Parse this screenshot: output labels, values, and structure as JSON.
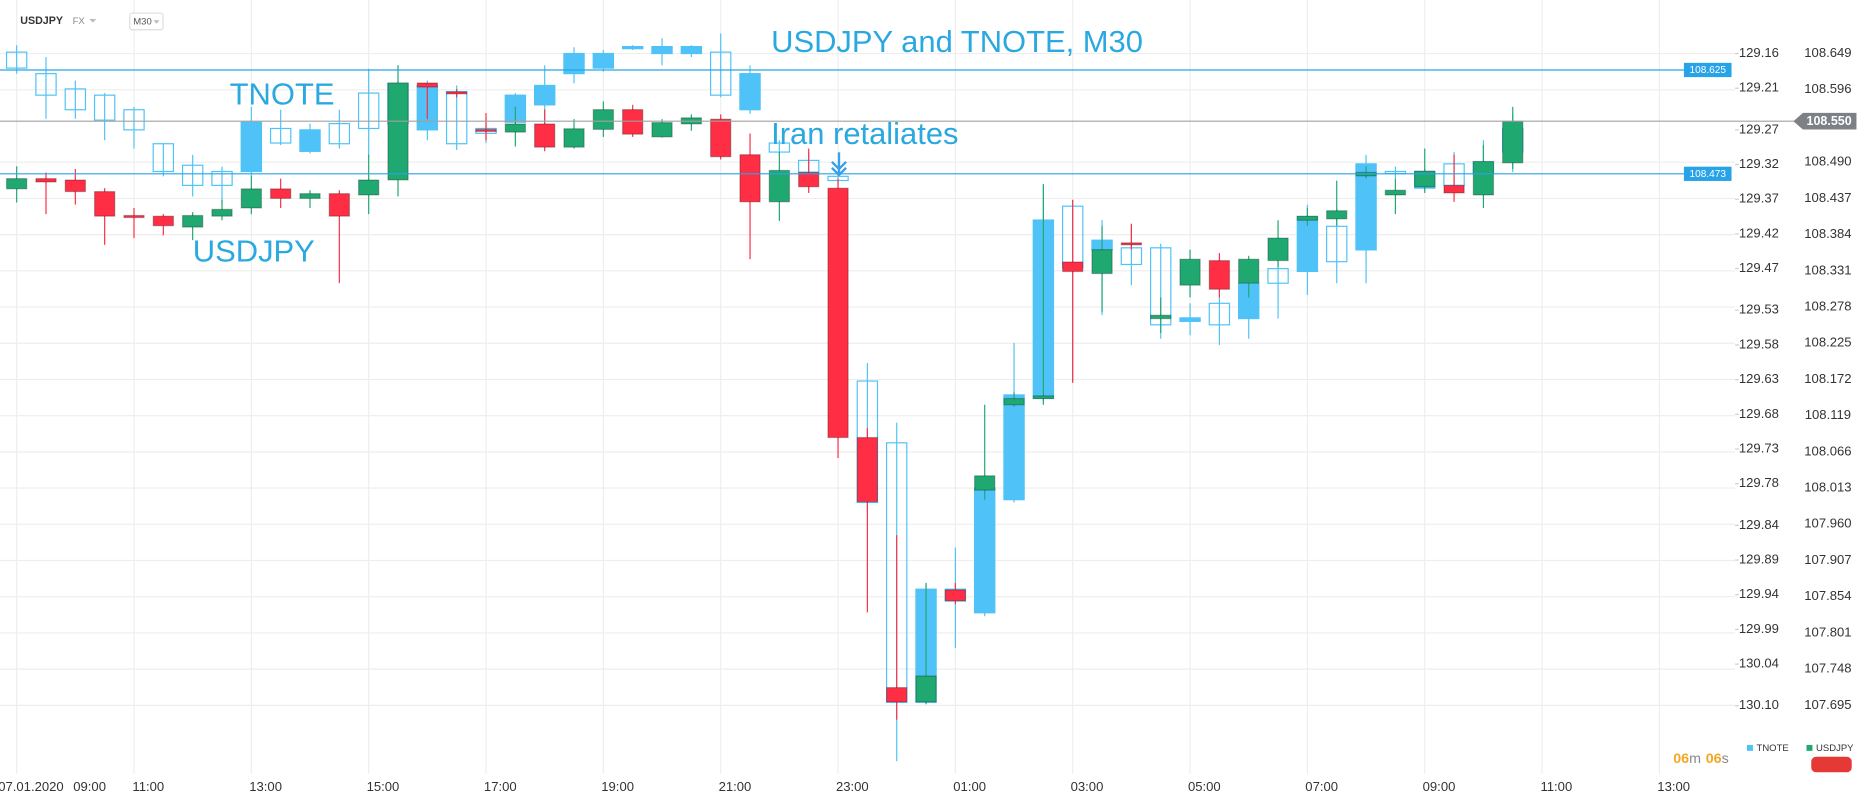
{
  "chart_data": {
    "type": "candlestick",
    "header": {
      "symbol": "USDJPY",
      "market": "FX",
      "timeframe": "M30"
    },
    "title": "USDJPY and TNOTE, M30",
    "annotations": [
      {
        "text": "TNOTE"
      },
      {
        "text": "USDJPY"
      },
      {
        "text": "Iran retaliates"
      }
    ],
    "categories": [
      "07.01.2020",
      null,
      "09:00",
      null,
      "11:00",
      null,
      null,
      null,
      "13:00",
      null,
      null,
      null,
      "15:00",
      null,
      null,
      null,
      "17:00",
      null,
      null,
      null,
      "19:00",
      null,
      null,
      null,
      "21:00",
      null,
      null,
      null,
      "23:00",
      null,
      null,
      null,
      "01:00",
      null,
      null,
      null,
      "03:00",
      null,
      null,
      null,
      "05:00",
      null,
      null,
      null,
      "07:00",
      null,
      null,
      null,
      "09:00",
      null,
      null,
      null,
      "11:00",
      null,
      null,
      null,
      "13:00"
    ],
    "ylim": [
      130.189,
      129.1
    ],
    "yticks": [
      129.16,
      129.21,
      129.27,
      129.32,
      129.37,
      129.42,
      129.47,
      129.53,
      129.58,
      129.63,
      129.68,
      129.73,
      129.78,
      129.84,
      129.89,
      129.94,
      129.99,
      130.04,
      {
        "value": 130.1,
        "label": "130.10"
      }
    ],
    "y2lim": [
      107.604,
      108.71
    ],
    "y2ticks": [
      108.649,
      108.596,
      {
        "value": 108.49,
        "label": "108.490"
      },
      108.437,
      108.384,
      108.331,
      108.278,
      108.225,
      108.172,
      108.119,
      108.066,
      108.013,
      {
        "value": 107.96,
        "label": "107.960"
      },
      107.907,
      107.854,
      107.801,
      107.748,
      107.695
    ],
    "grid": true,
    "levels": [
      {
        "value": 108.625,
        "color": "#29a3e8"
      },
      {
        "value": 108.473,
        "color": "#29a3e8"
      }
    ],
    "last_price": {
      "value": 108.55,
      "label": "108.550",
      "color": "#7d8186"
    },
    "countdown": [
      {
        "value": "06",
        "unit": "m"
      },
      {
        "value": "06",
        "unit": "s"
      }
    ],
    "series": [
      {
        "name": "TNOTE",
        "color": "#4fc3f7",
        "axis": "y",
        "values": [
          [
            129.158,
            129.189,
            129.148,
            129.181
          ],
          [
            129.189,
            129.254,
            129.165,
            129.22
          ],
          [
            129.211,
            129.254,
            129.199,
            129.241
          ],
          [
            129.22,
            129.285,
            129.217,
            129.256
          ],
          [
            129.241,
            129.297,
            129.237,
            129.27
          ],
          [
            129.29,
            129.337,
            129.289,
            129.33
          ],
          [
            129.321,
            129.366,
            129.306,
            129.35
          ],
          [
            129.33,
            129.378,
            129.323,
            129.35
          ],
          [
            129.33,
            129.337,
            129.237,
            129.259
          ],
          [
            129.268,
            129.292,
            129.241,
            129.289
          ],
          [
            129.301,
            129.304,
            129.261,
            129.27
          ],
          [
            129.261,
            129.297,
            129.241,
            129.29
          ],
          [
            129.217,
            129.309,
            129.182,
            129.268
          ],
          [
            129.261,
            129.289,
            129.199,
            129.203
          ],
          [
            129.27,
            129.285,
            129.199,
            129.206
          ],
          [
            129.215,
            129.299,
            129.206,
            129.29
          ],
          [
            129.268,
            129.289,
            129.254,
            129.275
          ],
          [
            129.259,
            129.263,
            129.217,
            129.22
          ],
          [
            129.234,
            129.271,
            129.177,
            129.206
          ],
          [
            129.189,
            129.203,
            129.151,
            129.16
          ],
          [
            129.181,
            129.186,
            129.155,
            129.16
          ],
          [
            129.153,
            129.155,
            129.148,
            129.15
          ],
          [
            129.16,
            129.177,
            129.138,
            129.15
          ],
          [
            129.16,
            129.165,
            129.148,
            129.15
          ],
          [
            129.158,
            129.223,
            129.131,
            129.22
          ],
          [
            129.241,
            129.247,
            129.177,
            129.189
          ],
          [
            129.289,
            129.306,
            129.285,
            129.302
          ],
          [
            129.314,
            129.34,
            129.302,
            129.331
          ],
          [
            129.337,
            129.349,
            129.331,
            129.343
          ],
          [
            129.632,
            129.82,
            129.606,
            129.807
          ],
          [
            129.721,
            130.18,
            129.692,
            130.095
          ],
          [
            130.095,
            130.098,
            129.923,
            129.932
          ],
          [
            129.949,
            130.017,
            129.872,
            129.932
          ],
          [
            129.966,
            129.971,
            129.769,
            129.786
          ],
          [
            129.803,
            129.807,
            129.577,
            129.652
          ],
          [
            129.657,
            129.662,
            129.349,
            129.4
          ],
          [
            129.38,
            129.632,
            129.371,
            129.469
          ],
          [
            129.443,
            129.537,
            129.4,
            129.429
          ],
          [
            129.44,
            129.494,
            129.409,
            129.464
          ],
          [
            129.44,
            129.571,
            129.434,
            129.551
          ],
          [
            129.546,
            129.566,
            129.52,
            129.541
          ],
          [
            129.52,
            129.58,
            129.511,
            129.551
          ],
          [
            129.542,
            129.571,
            129.469,
            129.491
          ],
          [
            129.47,
            129.542,
            129.46,
            129.491
          ],
          [
            129.474,
            129.508,
            129.378,
            129.395
          ],
          [
            129.409,
            129.491,
            129.383,
            129.46
          ],
          [
            129.443,
            129.491,
            129.306,
            129.319
          ],
          [
            129.33,
            129.34,
            129.323,
            129.333
          ],
          [
            129.354,
            129.357,
            129.326,
            129.33
          ],
          [
            129.319,
            129.357,
            129.302,
            129.35
          ],
          [
            129.333,
            129.343,
            129.285,
            129.316
          ],
          [
            129.302,
            129.331,
            129.246,
            129.268
          ],
          null,
          null,
          null,
          null,
          null
        ]
      },
      {
        "name": "USDJPY",
        "color": "#1fa971",
        "up_color": "#1fa971",
        "down_color": "#ff2e44",
        "axis": "y2",
        "values": [
          [
            108.451,
            108.484,
            108.431,
            108.466
          ],
          [
            108.466,
            108.475,
            108.414,
            108.461
          ],
          [
            108.464,
            108.48,
            108.428,
            108.447
          ],
          [
            108.447,
            108.452,
            108.369,
            108.411
          ],
          [
            108.412,
            108.423,
            108.379,
            108.409
          ],
          [
            108.411,
            108.414,
            108.383,
            108.397
          ],
          [
            108.395,
            108.417,
            108.376,
            108.412
          ],
          [
            108.411,
            108.435,
            108.405,
            108.421
          ],
          [
            108.423,
            108.47,
            108.414,
            108.451
          ],
          [
            108.451,
            108.466,
            108.423,
            108.437
          ],
          [
            108.437,
            108.449,
            108.423,
            108.444
          ],
          [
            108.444,
            108.449,
            108.313,
            108.411
          ],
          [
            108.442,
            108.501,
            108.414,
            108.464
          ],
          [
            108.464,
            108.632,
            108.44,
            108.606
          ],
          [
            108.606,
            108.606,
            108.553,
            108.6
          ],
          [
            108.593,
            108.597,
            108.585,
            108.59
          ],
          [
            108.538,
            108.562,
            108.522,
            108.535
          ],
          [
            108.534,
            108.571,
            108.513,
            108.546
          ],
          [
            108.546,
            108.567,
            108.506,
            108.512
          ],
          [
            108.512,
            108.553,
            108.51,
            108.539
          ],
          [
            108.538,
            108.579,
            108.527,
            108.567
          ],
          [
            108.567,
            108.574,
            108.527,
            108.531
          ],
          [
            108.527,
            108.553,
            108.526,
            108.548
          ],
          [
            108.546,
            108.56,
            108.536,
            108.555
          ],
          [
            108.553,
            108.56,
            108.494,
            108.498
          ],
          [
            108.501,
            108.532,
            108.348,
            108.432
          ],
          [
            108.432,
            108.505,
            108.404,
            108.478
          ],
          [
            108.475,
            108.51,
            108.445,
            108.454
          ],
          [
            108.452,
            108.466,
            108.057,
            108.087
          ],
          [
            108.087,
            108.101,
            107.831,
            107.993
          ],
          [
            107.721,
            107.944,
            107.674,
            107.7
          ],
          [
            107.7,
            107.874,
            107.697,
            107.738
          ],
          [
            107.864,
            107.874,
            107.843,
            107.848
          ],
          [
            108.01,
            108.135,
            107.996,
            108.031
          ],
          [
            108.135,
            108.153,
            108.132,
            108.144
          ],
          [
            108.144,
            108.458,
            108.135,
            108.148
          ],
          [
            108.344,
            108.435,
            108.167,
            108.33
          ],
          [
            108.327,
            108.397,
            108.271,
            108.362
          ],
          [
            108.372,
            108.4,
            108.362,
            108.369
          ],
          [
            108.261,
            108.292,
            108.24,
            108.266
          ],
          [
            108.31,
            108.362,
            108.292,
            108.348
          ],
          [
            108.346,
            108.357,
            108.292,
            108.304
          ],
          [
            108.313,
            108.353,
            108.292,
            108.348
          ],
          [
            108.346,
            108.405,
            108.336,
            108.379
          ],
          [
            108.405,
            108.423,
            108.397,
            108.411
          ],
          [
            108.407,
            108.463,
            108.397,
            108.419
          ],
          [
            108.47,
            108.484,
            108.466,
            108.475
          ],
          [
            108.442,
            108.466,
            108.414,
            108.449
          ],
          [
            108.454,
            108.51,
            108.445,
            108.477
          ],
          [
            108.456,
            108.501,
            108.432,
            108.445
          ],
          [
            108.442,
            108.515,
            108.423,
            108.491
          ],
          [
            108.489,
            108.571,
            108.48,
            108.55
          ],
          null,
          null,
          null,
          null,
          null
        ]
      }
    ]
  }
}
